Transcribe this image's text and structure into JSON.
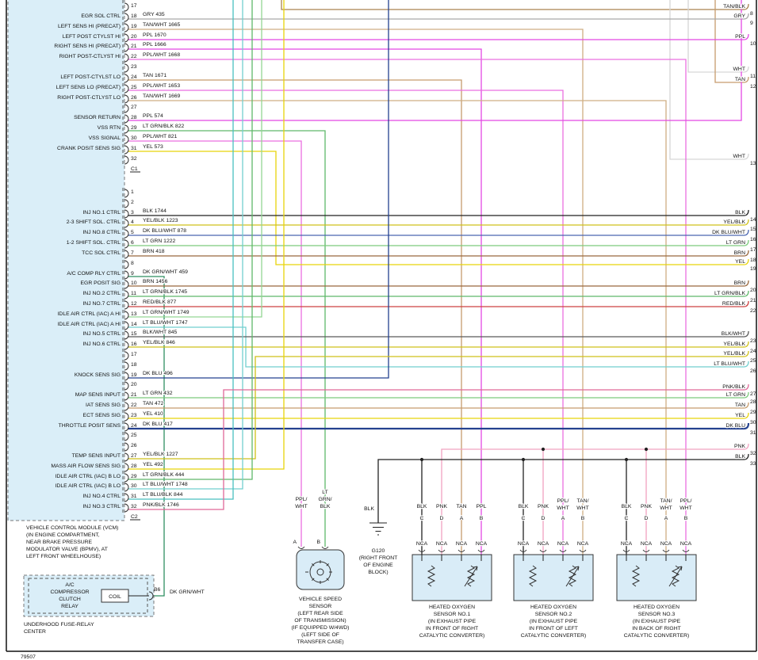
{
  "footer": {
    "diagram_number": "79507"
  },
  "colors": {
    "gry": "#a9a9a9",
    "tan": "#c69c6d",
    "tan_wht": "#cfae83",
    "tan_blk": "#a9824f",
    "ppl": "#e348e3",
    "ppl_wht": "#ea6fe0",
    "wht": "#d6d6d6",
    "blk": "#222222",
    "yel": "#e8d40a",
    "yel_blk": "#cfc11a",
    "dk_blu": "#24418f",
    "dk_blu_wht": "#4a66b0",
    "lt_grn": "#7ccb7c",
    "lt_grn_blk": "#5fb86a",
    "lt_grn_wht": "#93d693",
    "brn": "#99683e",
    "dk_grn_wht": "#2f8f62",
    "red_blk": "#cd4242",
    "blk_wht": "#5a5a5a",
    "lt_blu_wht": "#72cfcf",
    "lt_blu_blk": "#49bfbf",
    "pnk": "#f1a2c0",
    "pnk_blk": "#e06898"
  },
  "vcm": {
    "title_lines": [
      "VEHICLE CONTROL MODULE (VCM)",
      "(IN ENGINE COMPARTMENT,",
      "NEAR BRAKE PRESSURE",
      "MODULATOR VALVE (BPMV), AT",
      "LEFT FRONT WHEELHOUSE)"
    ],
    "connector1_label": "C1",
    "connector2_label": "C2",
    "c1_pins": [
      {
        "num": "17"
      },
      {
        "num": "18",
        "wire": "GRY  435",
        "signal": "EGR SOL CTRL"
      },
      {
        "num": "19",
        "wire": "TAN/WHT  1665",
        "signal": "LEFT SENS HI (PRECAT)"
      },
      {
        "num": "20",
        "wire": "PPL  1670",
        "signal": "LEFT POST CTYLST HI"
      },
      {
        "num": "21",
        "wire": "PPL  1666",
        "signal": "RIGHT SENS HI (PRECAT)"
      },
      {
        "num": "22",
        "wire": "PPL/WHT  1668",
        "signal": "RIGHT POST-CTLYST HI"
      },
      {
        "num": "23"
      },
      {
        "num": "24",
        "wire": "TAN  1671",
        "signal": "LEFT POST-CTYLST LO"
      },
      {
        "num": "25",
        "wire": "PPL/WHT  1653",
        "signal": "LEFT SENS LO (PRECAT)"
      },
      {
        "num": "26",
        "wire": "TAN/WHT  1669",
        "signal": "RIGHT POST-CTLYST LO"
      },
      {
        "num": "27"
      },
      {
        "num": "28",
        "wire": "PPL  574",
        "signal": "SENSOR RETURN"
      },
      {
        "num": "29",
        "wire": "LT GRN/BLK  822",
        "signal": "VSS RTN"
      },
      {
        "num": "30",
        "wire": "PPL/WHT  821",
        "signal": "VSS SIGNAL"
      },
      {
        "num": "31",
        "wire": "YEL  573",
        "signal": "CRANK POSIT SENS SIG"
      },
      {
        "num": "32"
      }
    ],
    "c2_pins": [
      {
        "num": "1"
      },
      {
        "num": "2"
      },
      {
        "num": "3",
        "wire": "BLK  1744",
        "signal": "INJ NO.1 CTRL"
      },
      {
        "num": "4",
        "wire": "YEL/BLK  1223",
        "signal": "2-3 SHIFT SOL. CTRL"
      },
      {
        "num": "5",
        "wire": "DK BLU/WHT  878",
        "signal": "INJ NO.8 CTRL"
      },
      {
        "num": "6",
        "wire": "LT GRN  1222",
        "signal": "1-2 SHIFT SOL. CTRL"
      },
      {
        "num": "7",
        "wire": "BRN  418",
        "signal": "TCC SOL CTRL"
      },
      {
        "num": "8"
      },
      {
        "num": "9",
        "wire": "DK GRN/WHT  459",
        "signal": "A/C COMP RLY CTRL"
      },
      {
        "num": "10",
        "wire": "BRN  1456",
        "signal": "EGR POSIT SIG"
      },
      {
        "num": "11",
        "wire": "LT GRN/BLK  1745",
        "signal": "INJ NO.2 CTRL"
      },
      {
        "num": "12",
        "wire": "RED/BLK  877",
        "signal": "INJ NO.7 CTRL"
      },
      {
        "num": "13",
        "wire": "LT GRN/WHT  1749",
        "signal": "IDLE AIR CTRL (IAC) A HI"
      },
      {
        "num": "14",
        "wire": "LT BLU/WHT  1747",
        "signal": "IDLE AIR CTRL (IAC) A HI"
      },
      {
        "num": "15",
        "wire": "BLK/WHT  845",
        "signal": "INJ NO.5 CTRL"
      },
      {
        "num": "16",
        "wire": "YEL/BLK  846",
        "signal": "INJ NO.6 CTRL"
      },
      {
        "num": "17"
      },
      {
        "num": "18"
      },
      {
        "num": "19",
        "wire": "DK BLU  496",
        "signal": "KNOCK SENS SIG"
      },
      {
        "num": "20"
      },
      {
        "num": "21",
        "wire": "LT GRN  432",
        "signal": "MAP SENS INPUT"
      },
      {
        "num": "22",
        "wire": "TAN  472",
        "signal": "IAT SENS SIG"
      },
      {
        "num": "23",
        "wire": "YEL  410",
        "signal": "ECT SENS SIG"
      },
      {
        "num": "24",
        "wire": "DK BLU  417",
        "signal": "THROTTLE POSIT SENS"
      },
      {
        "num": "25"
      },
      {
        "num": "26"
      },
      {
        "num": "27",
        "wire": "YEL/BLK  1227",
        "signal": "TEMP SENS INPUT"
      },
      {
        "num": "28",
        "wire": "YEL  492",
        "signal": "MASS AIR FLOW SENS SIG"
      },
      {
        "num": "29",
        "wire": "LT GRN/BLK  444",
        "signal": "IDLE AIR CTRL (IAC) B LO"
      },
      {
        "num": "30",
        "wire": "LT BLU/WHT  1748",
        "signal": "IDLE AIR CTRL (IAC) B LO"
      },
      {
        "num": "31",
        "wire": "LT BLU/BLK  844",
        "signal": "INJ NO.4 CTRL"
      },
      {
        "num": "32",
        "wire": "PNK/BLK  1746",
        "signal": "INJ NO.3 CTRL"
      }
    ]
  },
  "right_edge": [
    {
      "num": "8",
      "color": "TAN/BLK"
    },
    {
      "num": "9",
      "color": "GRY"
    },
    {
      "num": "10",
      "color": "PPL"
    },
    {
      "num": "11",
      "color": "WHT"
    },
    {
      "num": "12",
      "color": "TAN"
    },
    {
      "num": "13",
      "color": "WHT"
    },
    {
      "num": "14",
      "color": "BLK"
    },
    {
      "num": "15",
      "color": "YEL/BLK"
    },
    {
      "num": "16",
      "color": "DK BLU/WHT"
    },
    {
      "num": "17",
      "color": "LT GRN"
    },
    {
      "num": "18",
      "color": "BRN"
    },
    {
      "num": "19",
      "color": "YEL"
    },
    {
      "num": "20",
      "color": "BRN"
    },
    {
      "num": "21",
      "color": "LT GRN/BLK"
    },
    {
      "num": "22",
      "color": "RED/BLK"
    },
    {
      "num": "23",
      "color": "BLK/WHT"
    },
    {
      "num": "24",
      "color": "YEL/BLK"
    },
    {
      "num": "25",
      "color": "YEL/BLK"
    },
    {
      "num": "26",
      "color": "LT BLU/WHT"
    },
    {
      "num": "27",
      "color": "PNK/BLK"
    },
    {
      "num": "28",
      "color": "LT GRN"
    },
    {
      "num": "29",
      "color": "TAN"
    },
    {
      "num": "30",
      "color": "YEL"
    },
    {
      "num": "31",
      "color": "DK BLU"
    },
    {
      "num": "32",
      "color": "PNK"
    },
    {
      "num": "33",
      "color": "BLK"
    }
  ],
  "relay": {
    "box_lines": [
      "A/C",
      "COMPRESSOR",
      "CLUTCH",
      "RELAY"
    ],
    "coil": "COIL",
    "pin": "B6",
    "wire": "DK GRN/WHT",
    "center_lines": [
      "UNDERHOOD FUSE-RELAY",
      "CENTER"
    ]
  },
  "vss": {
    "pin_a": "A",
    "pin_b": "B",
    "wire_a_lines": [
      "PPL/",
      "WHT"
    ],
    "wire_b_lines": [
      "LT",
      "GRN/",
      "BLK"
    ],
    "name_lines": [
      "VEHICLE SPEED",
      "SENSOR",
      "(LEFT REAR SIDE",
      "OF TRANSMISSION)",
      "(IF EQUIPPED W/4WD)",
      "(LEFT SIDE OF",
      "TRANSFER CASE)"
    ]
  },
  "ground": {
    "blk_label": "BLK",
    "name": "G120",
    "loc_lines": [
      "(RIGHT FRONT",
      "OF ENGINE",
      "BLOCK)"
    ]
  },
  "o2_sensors": [
    {
      "name_lines": [
        "HEATED OXYGEN",
        "SENSOR NO.1",
        "(IN EXHAUST PIPE",
        "IN FRONT OF RIGHT",
        "CATALYTIC CONVERTER)"
      ],
      "pins": [
        {
          "letter": "C",
          "color_lines": [
            "BLK"
          ],
          "nca": "NCA"
        },
        {
          "letter": "D",
          "color_lines": [
            "PNK"
          ],
          "nca": "NCA"
        },
        {
          "letter": "A",
          "color_lines": [
            "TAN"
          ],
          "nca": "NCA"
        },
        {
          "letter": "B",
          "color_lines": [
            "PPL"
          ],
          "nca": "NCA"
        }
      ]
    },
    {
      "name_lines": [
        "HEATED OXYGEN",
        "SENSOR NO.2",
        "(IN EXHAUST PIPE",
        "IN FRONT OF LEFT",
        "CATALYTIC CONVERTER)"
      ],
      "pins": [
        {
          "letter": "C",
          "color_lines": [
            "BLK"
          ],
          "nca": "NCA"
        },
        {
          "letter": "D",
          "color_lines": [
            "PNK"
          ],
          "nca": "NCA"
        },
        {
          "letter": "A",
          "color_lines": [
            "PPL/",
            "WHT"
          ],
          "nca": "NCA"
        },
        {
          "letter": "B",
          "color_lines": [
            "TAN/",
            "WHT"
          ],
          "nca": "NCA"
        }
      ]
    },
    {
      "name_lines": [
        "HEATED OXYGEN",
        "SENSOR NO.3",
        "(IN EXHAUST PIPE",
        "IN BACK OF RIGHT",
        "CATALYTIC CONVERTER)"
      ],
      "pins": [
        {
          "letter": "C",
          "color_lines": [
            "BLK"
          ],
          "nca": "NCA"
        },
        {
          "letter": "D",
          "color_lines": [
            "PNK"
          ],
          "nca": "NCA"
        },
        {
          "letter": "A",
          "color_lines": [
            "TAN/",
            "WHT"
          ],
          "nca": "NCA"
        },
        {
          "letter": "B",
          "color_lines": [
            "PPL/",
            "WHT"
          ],
          "nca": "NCA"
        }
      ]
    }
  ]
}
